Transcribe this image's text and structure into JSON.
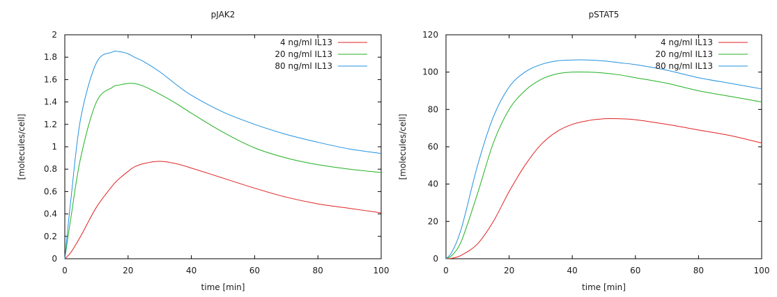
{
  "chart_data": [
    {
      "type": "line",
      "title": "pJAK2",
      "xlabel": "time [min]",
      "ylabel": "[molecules/cell]",
      "xlim": [
        0,
        100
      ],
      "ylim": [
        0,
        2
      ],
      "xticks": [
        0,
        20,
        40,
        60,
        80,
        100
      ],
      "yticks": [
        0,
        0.2,
        0.4,
        0.6,
        0.8,
        1,
        1.2,
        1.4,
        1.6,
        1.8,
        2
      ],
      "grid": false,
      "legend_position": "top-right",
      "x": [
        0,
        2,
        5,
        10,
        15,
        17,
        20,
        22,
        25,
        30,
        35,
        40,
        50,
        60,
        70,
        80,
        90,
        100
      ],
      "series": [
        {
          "name": "4 ng/ml IL13",
          "color": "#e02020",
          "values": [
            0,
            0.06,
            0.2,
            0.46,
            0.65,
            0.71,
            0.78,
            0.82,
            0.85,
            0.87,
            0.85,
            0.81,
            0.72,
            0.63,
            0.55,
            0.49,
            0.45,
            0.41
          ]
        },
        {
          "name": "20 ng/ml IL13",
          "color": "#20b020",
          "values": [
            0,
            0.38,
            0.9,
            1.4,
            1.53,
            1.55,
            1.565,
            1.565,
            1.54,
            1.47,
            1.39,
            1.3,
            1.13,
            0.99,
            0.9,
            0.84,
            0.8,
            0.77
          ]
        },
        {
          "name": "80 ng/ml IL13",
          "color": "#2090e0",
          "values": [
            0,
            0.55,
            1.25,
            1.75,
            1.845,
            1.85,
            1.83,
            1.8,
            1.76,
            1.67,
            1.56,
            1.46,
            1.31,
            1.2,
            1.11,
            1.04,
            0.98,
            0.94
          ]
        }
      ]
    },
    {
      "type": "line",
      "title": "pSTAT5",
      "xlabel": "time [min]",
      "ylabel": "[molecules/cell]",
      "xlim": [
        0,
        100
      ],
      "ylim": [
        0,
        120
      ],
      "xticks": [
        0,
        20,
        40,
        60,
        80,
        100
      ],
      "yticks": [
        0,
        20,
        40,
        60,
        80,
        100,
        120
      ],
      "grid": false,
      "legend_position": "top-right",
      "x": [
        0,
        2,
        5,
        10,
        15,
        20,
        25,
        30,
        35,
        40,
        45,
        50,
        55,
        60,
        70,
        80,
        90,
        100
      ],
      "series": [
        {
          "name": "4 ng/ml IL13",
          "color": "#e02020",
          "values": [
            0,
            0.3,
            2,
            8,
            20,
            36,
            50,
            61,
            68,
            72,
            74,
            75,
            75,
            74.5,
            72,
            69,
            66,
            62
          ]
        },
        {
          "name": "20 ng/ml IL13",
          "color": "#20b020",
          "values": [
            0,
            2,
            10,
            35,
            62,
            80,
            90,
            96,
            99,
            100,
            100,
            99.5,
            98.5,
            97,
            94,
            90,
            87,
            84
          ]
        },
        {
          "name": "80 ng/ml IL13",
          "color": "#2090e0",
          "values": [
            0,
            4,
            17,
            50,
            76,
            92,
            100,
            104,
            106,
            106.5,
            106.5,
            106,
            105,
            104,
            101,
            97,
            94,
            91
          ]
        }
      ]
    }
  ]
}
